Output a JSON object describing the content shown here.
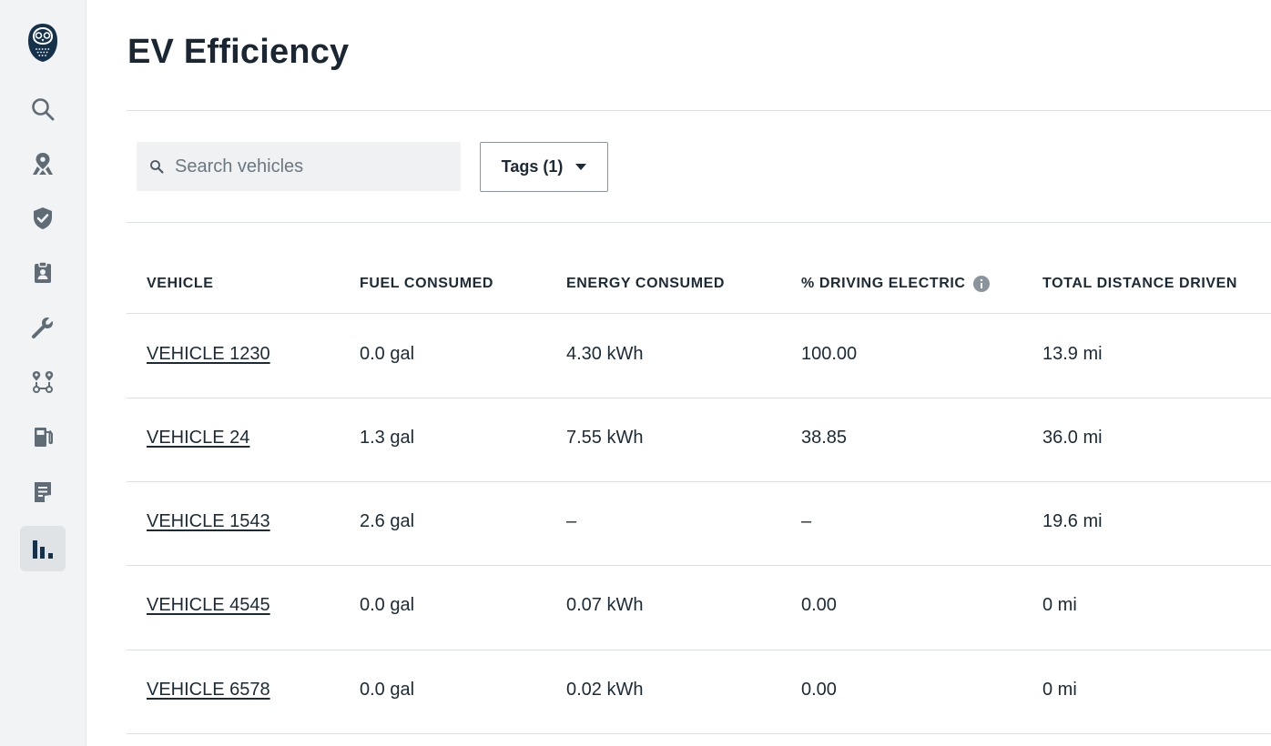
{
  "page": {
    "title": "EV Efficiency"
  },
  "sidebar": {
    "items": [
      {
        "icon": "search-icon",
        "active": false
      },
      {
        "icon": "map-pin-icon",
        "active": false
      },
      {
        "icon": "shield-check-icon",
        "active": false
      },
      {
        "icon": "clipboard-badge-icon",
        "active": false
      },
      {
        "icon": "wrench-icon",
        "active": false
      },
      {
        "icon": "route-icon",
        "active": false
      },
      {
        "icon": "fuel-pump-icon",
        "active": false
      },
      {
        "icon": "document-icon",
        "active": false
      },
      {
        "icon": "bar-chart-icon",
        "active": true
      }
    ]
  },
  "toolbar": {
    "search_placeholder": "Search vehicles",
    "search_value": "",
    "tags_label": "Tags (1)"
  },
  "table": {
    "headers": [
      "VEHICLE",
      "FUEL CONSUMED",
      "ENERGY CONSUMED",
      "% DRIVING ELECTRIC",
      "TOTAL DISTANCE DRIVEN"
    ],
    "rows": [
      {
        "vehicle": "VEHICLE 1230",
        "fuel": "0.0 gal",
        "energy": "4.30 kWh",
        "electric": "100.00",
        "distance": "13.9 mi"
      },
      {
        "vehicle": "VEHICLE 24",
        "fuel": "1.3 gal",
        "energy": "7.55 kWh",
        "electric": "38.85",
        "distance": "36.0 mi"
      },
      {
        "vehicle": "VEHICLE 1543",
        "fuel": "2.6 gal",
        "energy": "–",
        "electric": "–",
        "distance": "19.6 mi"
      },
      {
        "vehicle": "VEHICLE 4545",
        "fuel": "0.0 gal",
        "energy": "0.07 kWh",
        "electric": "0.00",
        "distance": "0 mi"
      },
      {
        "vehicle": "VEHICLE 6578",
        "fuel": "0.0 gal",
        "energy": "0.02 kWh",
        "electric": "0.00",
        "distance": "0 mi"
      }
    ]
  },
  "colors": {
    "sidebar_bg": "#f1f3f4",
    "icon": "#5f6b75",
    "text": "#1c2a36",
    "logo": "#15324a"
  }
}
